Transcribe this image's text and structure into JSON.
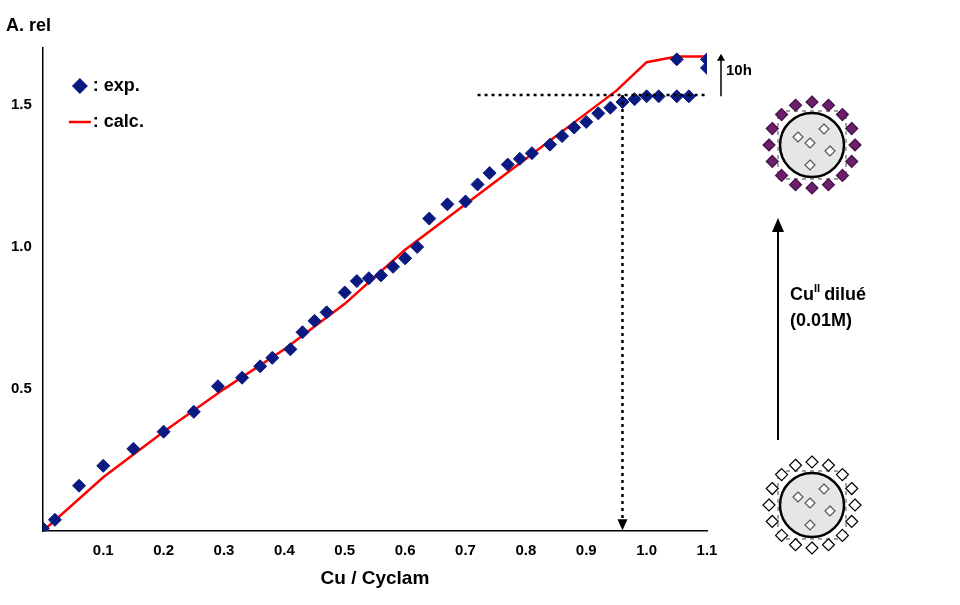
{
  "chart_data": {
    "type": "scatter",
    "y_label": "A. rel",
    "x_label": "Cu / Cyclam",
    "xlim": [
      0,
      1.1
    ],
    "xticks": [
      0.1,
      0.2,
      0.3,
      0.4,
      0.5,
      0.6,
      0.7,
      0.8,
      0.9,
      {
        "value": 1,
        "label": "1.0"
      },
      1.1
    ],
    "ylim": [
      0,
      1.7
    ],
    "yticks": [
      0.5,
      {
        "value": 1,
        "label": "1.0"
      },
      1.5
    ],
    "grid": false,
    "legend": "upper left",
    "series": [
      {
        "name": ": exp.",
        "type": "scatter",
        "color": "#0b1a80",
        "marker": "diamond",
        "x": [
          0.0,
          0.02,
          0.06,
          0.1,
          0.15,
          0.2,
          0.25,
          0.29,
          0.33,
          0.36,
          0.38,
          0.41,
          0.43,
          0.45,
          0.47,
          0.5,
          0.52,
          0.54,
          0.56,
          0.58,
          0.6,
          0.62,
          0.64,
          0.67,
          0.7,
          0.72,
          0.74,
          0.77,
          0.79,
          0.81,
          0.84,
          0.86,
          0.88,
          0.9,
          0.92,
          0.94,
          0.96,
          0.98,
          1.0,
          1.02,
          1.05,
          1.07,
          1.05,
          1.1,
          1.1
        ],
        "values": [
          0.01,
          0.04,
          0.16,
          0.23,
          0.29,
          0.35,
          0.42,
          0.51,
          0.54,
          0.58,
          0.61,
          0.64,
          0.7,
          0.74,
          0.77,
          0.84,
          0.88,
          0.89,
          0.9,
          0.93,
          0.96,
          1.0,
          1.1,
          1.15,
          1.16,
          1.22,
          1.26,
          1.29,
          1.31,
          1.33,
          1.36,
          1.39,
          1.42,
          1.44,
          1.47,
          1.49,
          1.51,
          1.52,
          1.53,
          1.53,
          1.53,
          1.53,
          1.66,
          1.66,
          1.63
        ]
      },
      {
        "name": ": calc.",
        "type": "line",
        "color": "#ff0000",
        "marker": "none",
        "line_style": "solid",
        "x": [
          0.0,
          0.1,
          0.2,
          0.3,
          0.4,
          0.5,
          0.6,
          0.7,
          0.8,
          0.9,
          0.95,
          1.0,
          1.05,
          1.1
        ],
        "values": [
          0.0,
          0.19,
          0.35,
          0.5,
          0.64,
          0.8,
          0.99,
          1.15,
          1.31,
          1.47,
          1.55,
          1.65,
          1.67,
          1.67
        ]
      }
    ],
    "guide": {
      "x": 0.96,
      "y": 1.535,
      "x_start": 0.72
    },
    "annotations": [
      {
        "text": "10h",
        "x": 1.1,
        "y_from": 1.53,
        "y_to": 1.68
      }
    ],
    "scheme": {
      "reagent": "Cu",
      "superscript": "II",
      "text": "dilué",
      "concentration": "(0.01M)"
    }
  }
}
